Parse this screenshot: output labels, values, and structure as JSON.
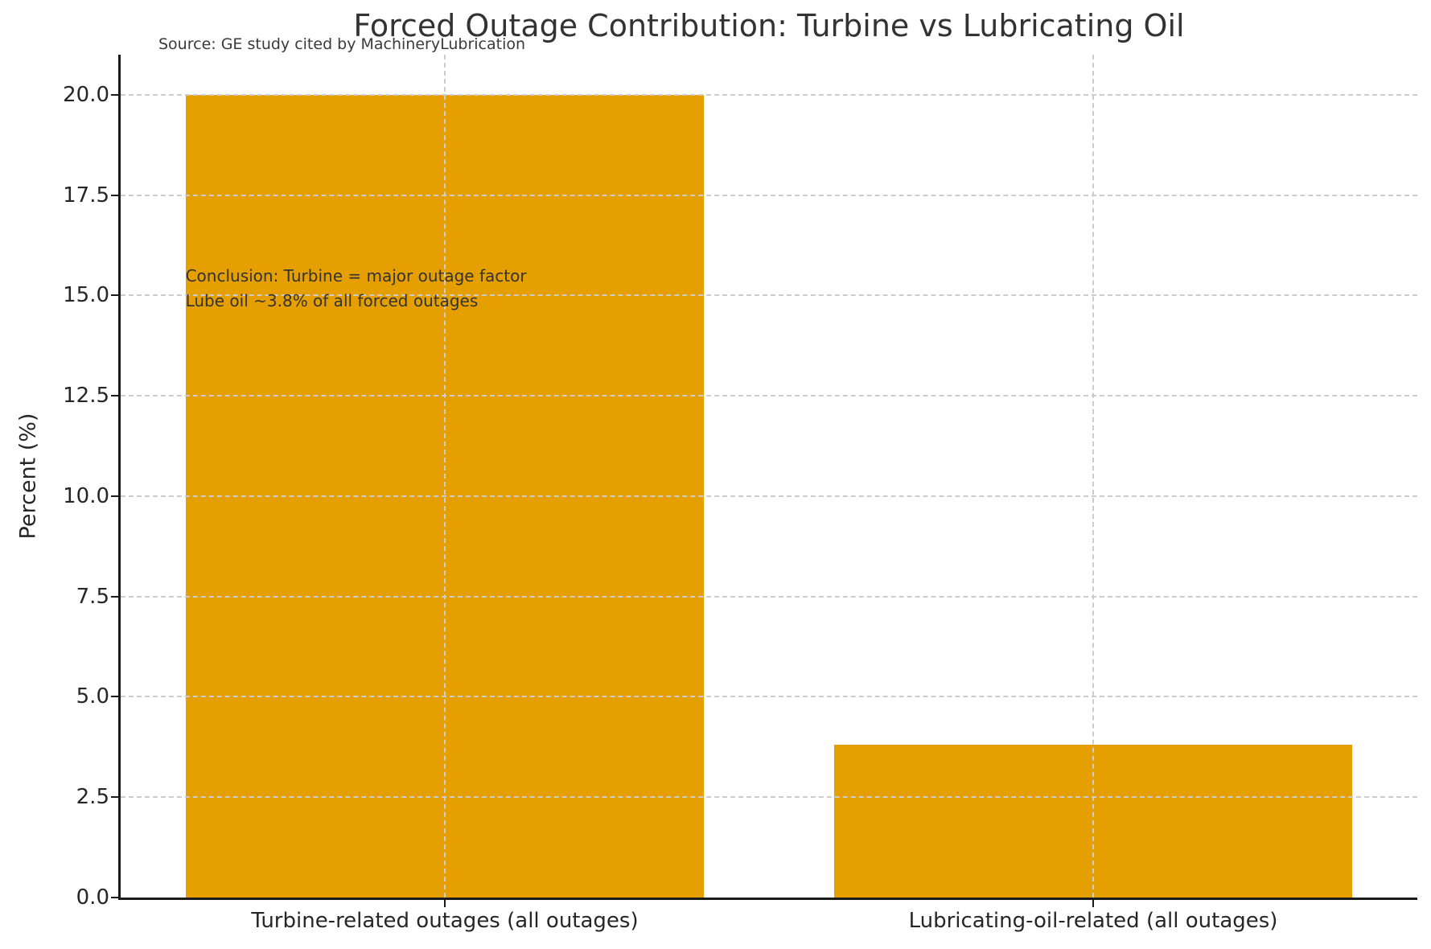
{
  "figure": {
    "source_note": "Source: GE study cited by MachineryLubrication"
  },
  "chart_data": {
    "type": "bar",
    "title": "Forced Outage Contribution: Turbine vs Lubricating Oil",
    "categories": [
      "Turbine-related outages (all outages)",
      "Lubricating-oil-related (all outages)"
    ],
    "values": [
      20.0,
      3.8
    ],
    "xlabel": "",
    "ylabel": "Percent (%)",
    "ylim": [
      0,
      21
    ],
    "xlim": [
      -0.5,
      1.5
    ],
    "yticks": [
      {
        "value": 0.0,
        "label": "0.0"
      },
      {
        "value": 2.5,
        "label": "2.5"
      },
      {
        "value": 5.0,
        "label": "5.0"
      },
      {
        "value": 7.5,
        "label": "7.5"
      },
      {
        "value": 10.0,
        "label": "10.0"
      },
      {
        "value": 12.5,
        "label": "12.5"
      },
      {
        "value": 15.0,
        "label": "15.0"
      },
      {
        "value": 17.5,
        "label": "17.5"
      },
      {
        "value": 20.0,
        "label": "20.0"
      }
    ],
    "bar_width": 0.8,
    "grid": true,
    "grid_style": "dashed",
    "grid_above_bars": true,
    "legend": "none",
    "colors": {
      "bar": "#E69F00",
      "grid": "#cccccc",
      "axis": "#1a1a1a",
      "tick_text": "#262626",
      "title_text": "#333333"
    },
    "annotation": {
      "lines": [
        "Conclusion: Turbine = major outage factor",
        "Lube oil ~3.8% of all forced outages"
      ],
      "x": -0.4,
      "y": 15.8
    }
  }
}
